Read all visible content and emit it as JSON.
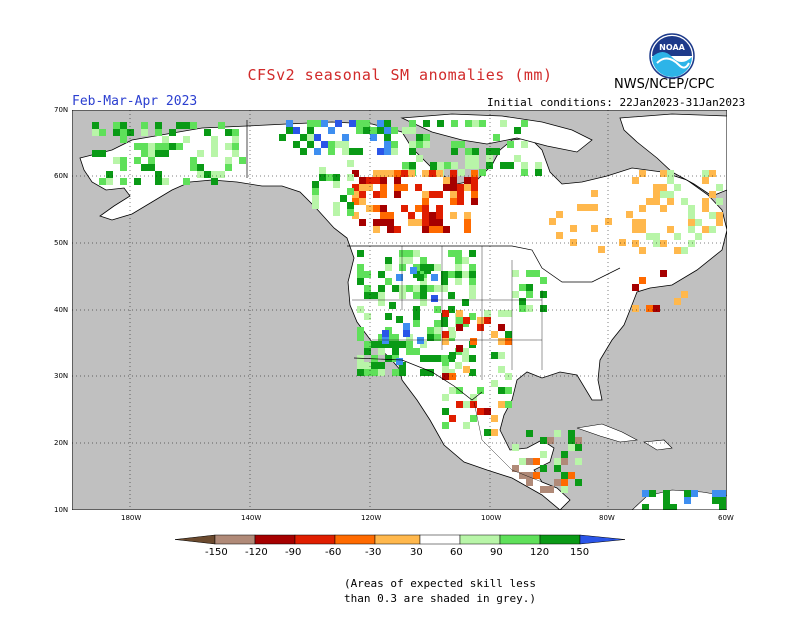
{
  "header": {
    "title": "CFSv2 seasonal SM anomalies (mm)",
    "org": "NWS/NCEP/CPC",
    "period": "Feb-Mar-Apr 2023",
    "initial_conditions": "Initial conditions: 22Jan2023-31Jan2023"
  },
  "logo": {
    "text": "NOAA"
  },
  "axes": {
    "lat_labels": [
      "70N",
      "60N",
      "50N",
      "40N",
      "30N",
      "20N",
      "10N"
    ],
    "lon_labels": [
      "180W",
      "140W",
      "120W",
      "100W",
      "80W",
      "60W"
    ]
  },
  "colorbar": {
    "labels": [
      "-150",
      "-120",
      "-90",
      "-60",
      "-30",
      "30",
      "60",
      "90",
      "120",
      "150"
    ],
    "colors": [
      "#6b4a2e",
      "#b08a78",
      "#a60000",
      "#e01e00",
      "#ff6a00",
      "#ffb84d",
      "#ffffff",
      "#b8f5a8",
      "#5fe05a",
      "#0a9a16",
      "#3e8ef0",
      "#2a55e8"
    ]
  },
  "note": {
    "line1": "(Areas of expected skill less",
    "line2": "than 0.3 are shaded in grey.)"
  },
  "colors": {
    "grey_low_skill": "#c0c0c0",
    "title_red": "#d12a2a",
    "period_blue": "#2b3fd0"
  }
}
